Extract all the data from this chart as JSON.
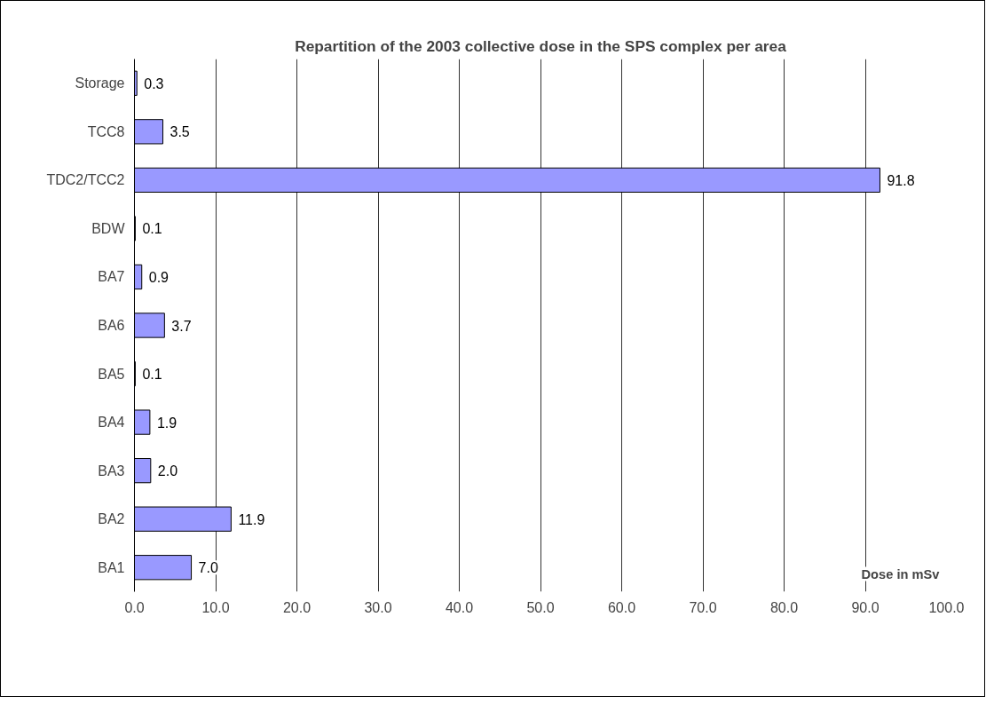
{
  "chart_data": {
    "type": "bar",
    "orientation": "horizontal",
    "title": "Repartition of the 2003 collective dose in the SPS complex per area",
    "xlabel": "Dose in mSv",
    "categories": [
      "Storage",
      "TCC8",
      "TDC2/TCC2",
      "BDW",
      "BA7",
      "BA6",
      "BA5",
      "BA4",
      "BA3",
      "BA2",
      "BA1"
    ],
    "values": [
      0.3,
      3.5,
      91.8,
      0.1,
      0.9,
      3.7,
      0.1,
      1.9,
      2.0,
      11.9,
      7.0
    ],
    "value_labels": [
      "0.3",
      "3.5",
      "91.8",
      "0.1",
      "0.9",
      "3.7",
      "0.1",
      "1.9",
      "2.0",
      "11.9",
      "7.0"
    ],
    "color": "#9999ff",
    "xlim": [
      0,
      100
    ],
    "xticks": [
      {
        "value": 0,
        "label": "0.0"
      },
      {
        "value": 10,
        "label": "10.0"
      },
      {
        "value": 20,
        "label": "20.0"
      },
      {
        "value": 30,
        "label": "30.0"
      },
      {
        "value": 40,
        "label": "40.0"
      },
      {
        "value": 50,
        "label": "50.0"
      },
      {
        "value": 60,
        "label": "60.0"
      },
      {
        "value": 70,
        "label": "70.0"
      },
      {
        "value": 80,
        "label": "80.0"
      },
      {
        "value": 90,
        "label": "90.0"
      },
      {
        "value": 100,
        "label": "100.0"
      }
    ],
    "grid": "x"
  }
}
